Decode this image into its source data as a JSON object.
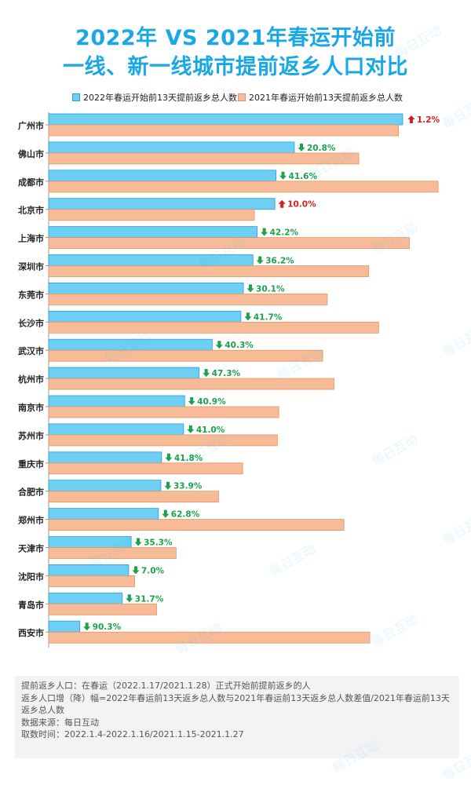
{
  "title_line1": "2022年 VS 2021年春运开始前",
  "title_line2": "一线、新一线城市提前返乡人口对比",
  "watermark_text": "每日互动",
  "colors": {
    "title": "#1aa7e6",
    "bar_2022": "#6dcff3",
    "bar_2022_border": "#2c9fd4",
    "bar_2021": "#f7bc97",
    "bar_2021_border": "#e09668",
    "down": "#1aa34a",
    "up": "#d71f1f"
  },
  "chart_data": {
    "type": "bar",
    "orientation": "horizontal",
    "categories": [
      "广州市",
      "佛山市",
      "成都市",
      "北京市",
      "上海市",
      "深圳市",
      "东莞市",
      "长沙市",
      "武汉市",
      "杭州市",
      "南京市",
      "苏州市",
      "重庆市",
      "合肥市",
      "郑州市",
      "天津市",
      "沈阳市",
      "青岛市",
      "西安市"
    ],
    "series": [
      {
        "name": "2022年春运开始前13天提前返乡总人数",
        "values": [
          100,
          69.4,
          64.2,
          63.9,
          58.9,
          57.7,
          55.0,
          54.3,
          46.2,
          42.5,
          38.4,
          38.1,
          31.9,
          31.7,
          31.0,
          23.3,
          22.6,
          20.8,
          8.8
        ]
      },
      {
        "name": "2021年春运开始前13天提前返乡总人数",
        "values": [
          98.8,
          87.6,
          110.0,
          58.1,
          101.9,
          90.4,
          78.7,
          93.2,
          77.4,
          80.6,
          65.0,
          64.6,
          54.8,
          48.0,
          83.4,
          36.0,
          24.3,
          30.5,
          90.7
        ]
      }
    ],
    "changes": [
      {
        "dir": "up",
        "label": "1.2%"
      },
      {
        "dir": "down",
        "label": "20.8%"
      },
      {
        "dir": "down",
        "label": "41.6%"
      },
      {
        "dir": "up",
        "label": "10.0%"
      },
      {
        "dir": "down",
        "label": "42.2%"
      },
      {
        "dir": "down",
        "label": "36.2%"
      },
      {
        "dir": "down",
        "label": "30.1%"
      },
      {
        "dir": "down",
        "label": "41.7%"
      },
      {
        "dir": "down",
        "label": "40.3%"
      },
      {
        "dir": "down",
        "label": "47.3%"
      },
      {
        "dir": "down",
        "label": "40.9%"
      },
      {
        "dir": "down",
        "label": "41.0%"
      },
      {
        "dir": "down",
        "label": "41.8%"
      },
      {
        "dir": "down",
        "label": "33.9%"
      },
      {
        "dir": "down",
        "label": "62.8%"
      },
      {
        "dir": "down",
        "label": "35.3%"
      },
      {
        "dir": "down",
        "label": "7.0%"
      },
      {
        "dir": "down",
        "label": "31.7%"
      },
      {
        "dir": "down",
        "label": "90.3%"
      }
    ],
    "legend_position": "top",
    "grid": false
  },
  "notes": [
    "提前返乡人口：在春运（2022.1.17/2021.1.28）正式开始前提前返乡的人",
    "返乡人口增（降）幅=2022年春运前13天返乡总人数与2021年春运前13天返乡总人数差值/2021年春运前13天返乡总人数",
    "数据来源：每日互动",
    "取数时间：2022.1.4-2022.1.16/2021.1.15-2021.1.27"
  ]
}
